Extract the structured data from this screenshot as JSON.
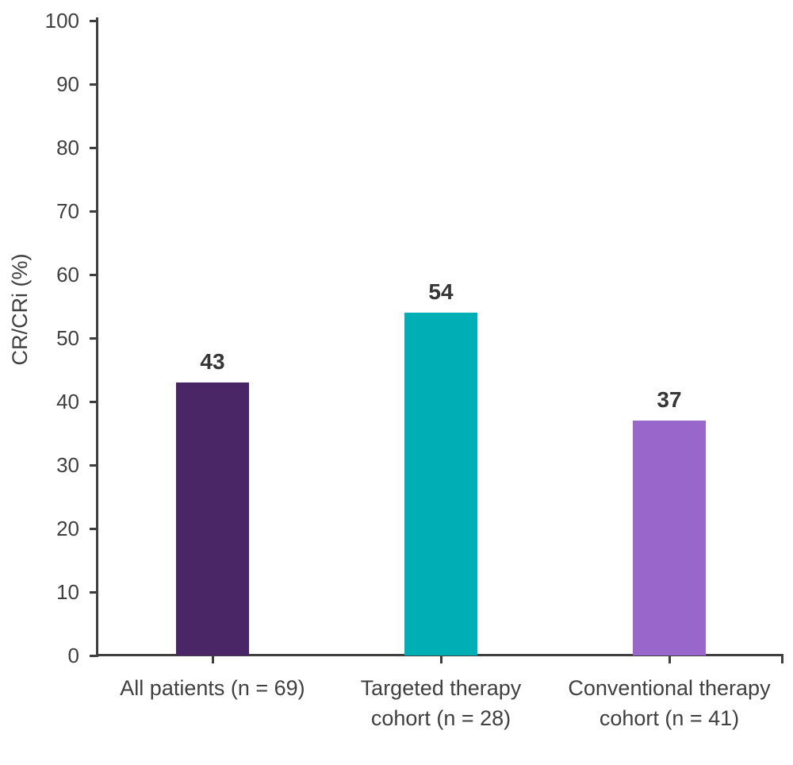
{
  "chart_data": {
    "type": "bar",
    "title": "",
    "xlabel": "",
    "ylabel": "CR/CRi (%)",
    "ylim": [
      0,
      100
    ],
    "ytick_interval": 10,
    "yticks": [
      0,
      10,
      20,
      30,
      40,
      50,
      60,
      70,
      80,
      90,
      100
    ],
    "categories": [
      "All patients (n = 69)",
      "Targeted therapy cohort (n = 28)",
      "Conventional therapy cohort (n = 41)"
    ],
    "category_lines": [
      [
        "All patients (n = 69)"
      ],
      [
        "Targeted therapy",
        "cohort (n = 28)"
      ],
      [
        "Conventional therapy",
        "cohort (n = 41)"
      ]
    ],
    "series": [
      {
        "name": "CR/CRi",
        "values": [
          43,
          54,
          37
        ]
      }
    ],
    "values": [
      43,
      54,
      37
    ],
    "data_labels": [
      "43",
      "54",
      "37"
    ],
    "bar_colors": [
      "#4A2667",
      "#00AFB6",
      "#9966CB"
    ],
    "colors": {
      "axis": "#3F3F3F",
      "tick_text": "#3F3F3F",
      "data_label": "#363636",
      "background": "#FFFFFF"
    },
    "grid": false,
    "legend_position": "none"
  }
}
